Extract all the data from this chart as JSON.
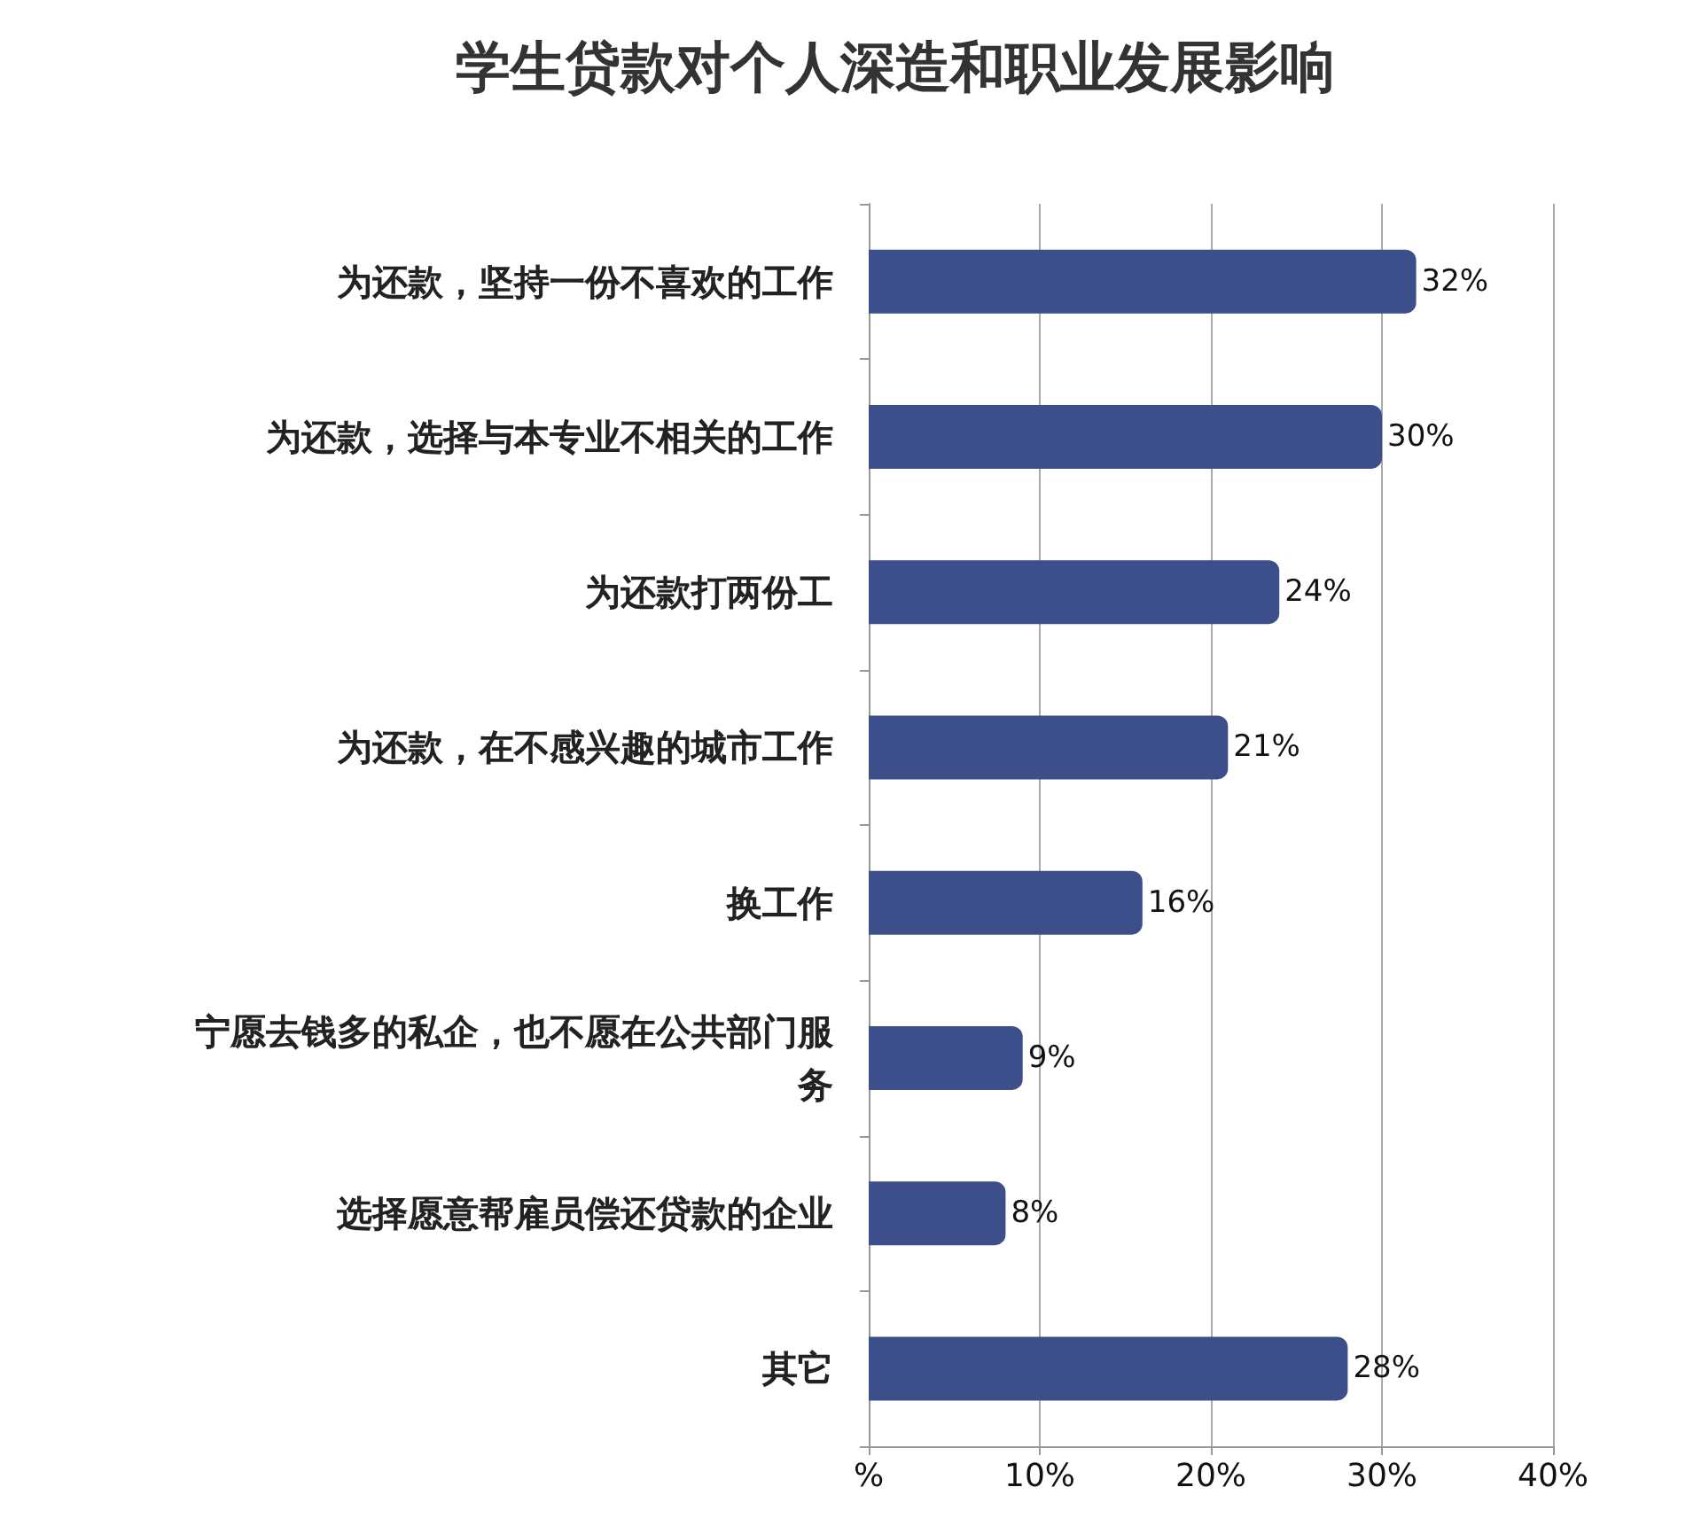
{
  "chart_data": {
    "type": "bar",
    "orientation": "horizontal",
    "title": "学生贷款对个人深造和职业发展影响",
    "categories": [
      "为还款，坚持一份不喜欢的工作",
      "为还款，选择与本专业不相关的工作",
      "为还款打两份工",
      "为还款，在不感兴趣的城市工作",
      "换工作",
      "宁愿去钱多的私企，也不愿在公共部门服务",
      "选择愿意帮雇员偿还贷款的企业",
      "其它"
    ],
    "values": [
      32,
      30,
      24,
      21,
      16,
      9,
      8,
      28
    ],
    "value_labels": [
      "32%",
      "30%",
      "24%",
      "21%",
      "16%",
      "9%",
      "8%",
      "28%"
    ],
    "color": "#3d4f8a",
    "xlim": [
      0,
      40
    ],
    "xticks": [
      {
        "value": 0,
        "label": "%"
      },
      {
        "value": 10,
        "label": "10%"
      },
      {
        "value": 20,
        "label": "20%"
      },
      {
        "value": 30,
        "label": "30%"
      },
      {
        "value": 40,
        "label": "40%"
      }
    ],
    "grid": "x"
  }
}
